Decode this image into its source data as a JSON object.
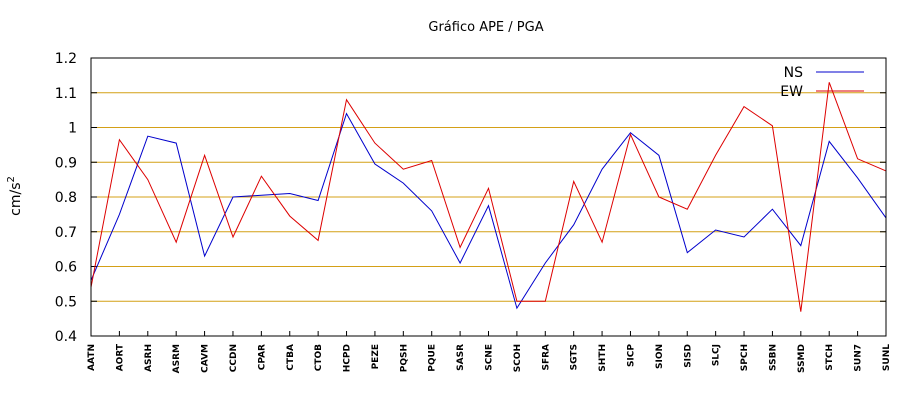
{
  "chart_data": {
    "type": "line",
    "title": "Gráfico  APE / PGA",
    "xlabel": "",
    "ylabel_base": "cm/s",
    "ylabel_exp": "2",
    "ylim": [
      0.4,
      1.2
    ],
    "yticks": [
      "0.4",
      "0.5",
      "0.6",
      "0.7",
      "0.8",
      "0.9",
      "1",
      "1.1",
      "1.2"
    ],
    "ytick_values": [
      0.4,
      0.5,
      0.6,
      0.7,
      0.8,
      0.9,
      1.0,
      1.1,
      1.2
    ],
    "grid": "horizontal",
    "grid_color": "#d4a017",
    "legend_position": "top-right",
    "categories": [
      "AATN",
      "AORT",
      "ASRH",
      "ASRM",
      "CAVM",
      "CCDN",
      "CPAR",
      "CTBA",
      "CTOB",
      "HCPD",
      "PEZE",
      "PQSH",
      "PQUE",
      "SASR",
      "SCNE",
      "SCOH",
      "SFRA",
      "SGTS",
      "SHTH",
      "SICP",
      "SION",
      "SISD",
      "SLCJ",
      "SPCH",
      "SSBN",
      "SSMD",
      "STCH",
      "SUN7",
      "SUNL"
    ],
    "series": [
      {
        "name": "NS",
        "color": "#0000cc",
        "values": [
          0.56,
          0.75,
          0.975,
          0.955,
          0.63,
          0.8,
          0.805,
          0.81,
          0.79,
          1.04,
          0.895,
          0.84,
          0.76,
          0.61,
          0.775,
          0.48,
          0.61,
          0.72,
          0.88,
          0.985,
          0.92,
          0.64,
          0.705,
          0.685,
          0.765,
          0.66,
          0.96,
          0.855,
          0.74
        ]
      },
      {
        "name": "EW",
        "color": "#dd0000",
        "values": [
          0.54,
          0.965,
          0.85,
          0.67,
          0.92,
          0.685,
          0.86,
          0.745,
          0.675,
          1.08,
          0.955,
          0.88,
          0.905,
          0.655,
          0.825,
          0.5,
          0.5,
          0.845,
          0.67,
          0.98,
          0.8,
          0.765,
          0.92,
          1.06,
          1.005,
          0.47,
          1.13,
          0.91,
          0.875
        ]
      }
    ]
  }
}
